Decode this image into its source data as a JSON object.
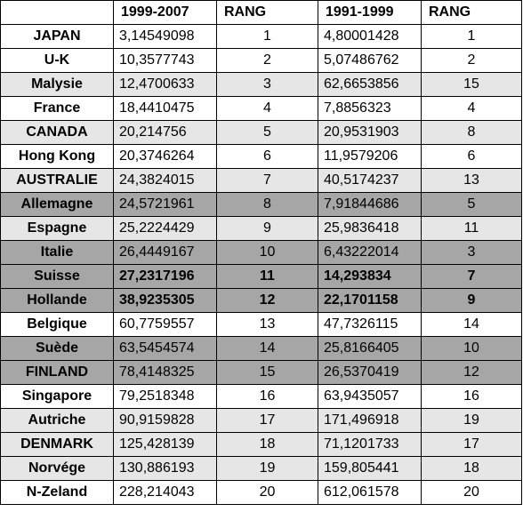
{
  "table": {
    "headers": [
      "",
      "1999-2007",
      "RANG",
      "1991-1999",
      "RANG"
    ],
    "rows": [
      {
        "country": "JAPAN",
        "v1": "3,14549098",
        "r1": "1",
        "v2": "4,80001428",
        "r2": "1",
        "shade": "none",
        "bold": false
      },
      {
        "country": "U-K",
        "v1": "10,3577743",
        "r1": "2",
        "v2": "5,07486762",
        "r2": "2",
        "shade": "none",
        "bold": false
      },
      {
        "country": "Malysie",
        "v1": "12,4700633",
        "r1": "3",
        "v2": "62,6653856",
        "r2": "15",
        "shade": "light",
        "bold": false
      },
      {
        "country": "France",
        "v1": "18,4410475",
        "r1": "4",
        "v2": "7,8856323",
        "r2": "4",
        "shade": "none",
        "bold": false
      },
      {
        "country": "CANADA",
        "v1": "20,214756",
        "r1": "5",
        "v2": "20,9531903",
        "r2": "8",
        "shade": "light",
        "bold": false
      },
      {
        "country": "Hong Kong",
        "v1": "20,3746264",
        "r1": "6",
        "v2": "11,9579206",
        "r2": "6",
        "shade": "none",
        "bold": false
      },
      {
        "country": "AUSTRALIE",
        "v1": "24,3824015",
        "r1": "7",
        "v2": "40,5174237",
        "r2": "13",
        "shade": "light",
        "bold": false
      },
      {
        "country": "Allemagne",
        "v1": "24,5721961",
        "r1": "8",
        "v2": "7,91844686",
        "r2": "5",
        "shade": "dark",
        "bold": false
      },
      {
        "country": "Espagne",
        "v1": "25,2224429",
        "r1": "9",
        "v2": "25,9836418",
        "r2": "11",
        "shade": "light",
        "bold": false
      },
      {
        "country": "Italie",
        "v1": "26,4449167",
        "r1": "10",
        "v2": "6,43222014",
        "r2": "3",
        "shade": "dark",
        "bold": false
      },
      {
        "country": "Suisse",
        "v1": "27,2317196",
        "r1": "11",
        "v2": "14,293834",
        "r2": "7",
        "shade": "dark",
        "bold": true
      },
      {
        "country": "Hollande",
        "v1": "38,9235305",
        "r1": "12",
        "v2": "22,1701158",
        "r2": "9",
        "shade": "dark",
        "bold": true
      },
      {
        "country": "Belgique",
        "v1": "60,7759557",
        "r1": "13",
        "v2": "47,7326115",
        "r2": "14",
        "shade": "none",
        "bold": false
      },
      {
        "country": "Suède",
        "v1": "63,5454574",
        "r1": "14",
        "v2": "25,8166405",
        "r2": "10",
        "shade": "dark",
        "bold": false
      },
      {
        "country": "FINLAND",
        "v1": "78,4148325",
        "r1": "15",
        "v2": "26,5370419",
        "r2": "12",
        "shade": "dark",
        "bold": false
      },
      {
        "country": "Singapore",
        "v1": "79,2518348",
        "r1": "16",
        "v2": "63,9435057",
        "r2": "16",
        "shade": "none",
        "bold": false
      },
      {
        "country": "Autriche",
        "v1": "90,9159828",
        "r1": "17",
        "v2": "171,496918",
        "r2": "19",
        "shade": "light",
        "bold": false
      },
      {
        "country": "DENMARK",
        "v1": "125,428139",
        "r1": "18",
        "v2": "71,1201733",
        "r2": "17",
        "shade": "light",
        "bold": false
      },
      {
        "country": "Norvége",
        "v1": "130,886193",
        "r1": "19",
        "v2": "159,805441",
        "r2": "18",
        "shade": "light",
        "bold": false
      },
      {
        "country": "N-Zeland",
        "v1": "228,214043",
        "r1": "20",
        "v2": "612,061578",
        "r2": "20",
        "shade": "none",
        "bold": false
      }
    ]
  },
  "colors": {
    "shade_light": "#e6e6e6",
    "shade_dark": "#a6a6a6",
    "border": "#000000"
  }
}
